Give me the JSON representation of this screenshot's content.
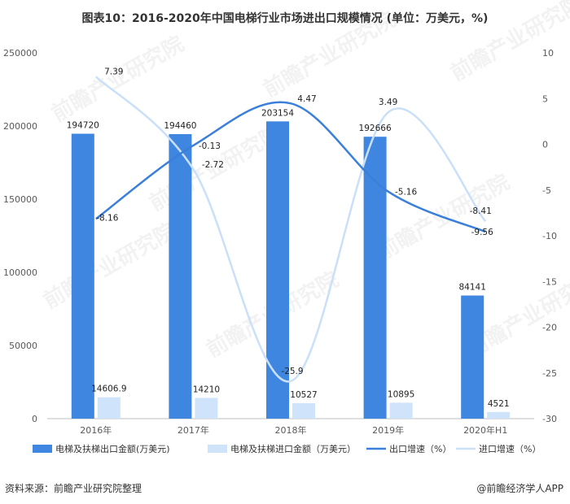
{
  "title": "图表10：2016-2020年中国电梯行业市场进出口规模情况 (单位：万美元，%)",
  "footer": {
    "source": "资料来源：前瞻产业研究院整理",
    "brand": "@前瞻经济学人APP"
  },
  "watermark": "前瞻产业研究院",
  "colors": {
    "export_bar": "#3f86e0",
    "import_bar": "#cfe3fa",
    "export_line": "#3a7fd9",
    "import_line": "#c9e0f8"
  },
  "chart_data": {
    "type": "bar",
    "categories": [
      "2016年",
      "2017年",
      "2018年",
      "2019年",
      "2020年H1"
    ],
    "series": [
      {
        "name": "电梯及扶梯出口金额(万美元)",
        "kind": "bar",
        "axis": "left",
        "values": [
          194720,
          194460,
          203154,
          192666,
          84141
        ],
        "labels": [
          "194720",
          "194460",
          "203154",
          "192666",
          "84141"
        ]
      },
      {
        "name": "电梯及扶梯进口金额（万美元）",
        "kind": "bar",
        "axis": "left",
        "values": [
          14606.9,
          14210,
          10527,
          10895,
          4521
        ],
        "labels": [
          "14606.9",
          "14210",
          "10527",
          "10895",
          "4521"
        ]
      },
      {
        "name": "出口增速（%）",
        "kind": "line",
        "axis": "right",
        "values": [
          -8.16,
          -0.13,
          4.47,
          -5.16,
          -9.56
        ],
        "labels": [
          "-8.16",
          "-0.13",
          "4.47",
          "-5.16",
          "-9.56"
        ]
      },
      {
        "name": "进口增速（%）",
        "kind": "line",
        "axis": "right",
        "values": [
          7.39,
          -2.72,
          -25.9,
          3.49,
          -8.41
        ],
        "labels": [
          "7.39",
          "-2.72",
          "-25.9",
          "3.49",
          "-8.41"
        ]
      }
    ],
    "left_axis": {
      "min": 0,
      "max": 250000,
      "ticks": [
        "0",
        "50000",
        "100000",
        "150000",
        "200000",
        "250000"
      ]
    },
    "right_axis": {
      "min": -30,
      "max": 10,
      "ticks": [
        "-30",
        "-25",
        "-20",
        "-15",
        "-10",
        "-5",
        "0",
        "5",
        "10"
      ]
    },
    "grid": false,
    "legend_position": "bottom"
  }
}
